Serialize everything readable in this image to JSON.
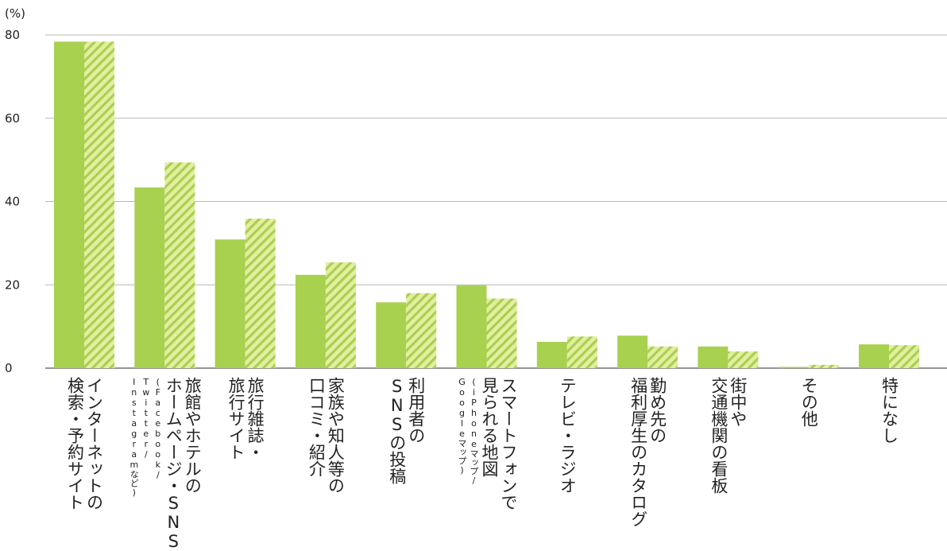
{
  "chart_data": {
    "type": "bar",
    "y_unit": "(%)",
    "ylim": [
      0,
      80
    ],
    "yticks": [
      0,
      20,
      40,
      60,
      80
    ],
    "grid": true,
    "categories": [
      [
        "インターネットの",
        "検索・予約サイト"
      ],
      [
        "旅館やホテルの",
        "ホームページ・SNS",
        "(Facebook/",
        "Twitter/",
        "Instagramなど)"
      ],
      [
        "旅行雑誌・",
        "旅行サイト"
      ],
      [
        "家族や知人等の",
        "口コミ・紹介"
      ],
      [
        "利用者の",
        "SNSの投稿"
      ],
      [
        "スマートフォンで",
        "見られる地図",
        "(iPhoneマップ/",
        "Googleマップ)"
      ],
      [
        "テレビ・ラジオ"
      ],
      [
        "勤め先の",
        "福利厚生のカタログ"
      ],
      [
        "街中や",
        "交通機関の看板"
      ],
      [
        "その他"
      ],
      [
        "特になし"
      ]
    ],
    "series": [
      {
        "style": "solid",
        "color": "#a8d14f",
        "values": [
          78.4,
          43.4,
          30.9,
          22.4,
          15.8,
          19.9,
          6.3,
          7.8,
          5.2,
          0.3,
          5.7
        ]
      },
      {
        "style": "hatched",
        "color": "#a8d14f",
        "hatch_color": "#e3eea2",
        "values": [
          78.4,
          49.4,
          35.9,
          25.4,
          18.0,
          16.7,
          7.6,
          5.2,
          4.0,
          0.8,
          5.5
        ]
      }
    ]
  }
}
